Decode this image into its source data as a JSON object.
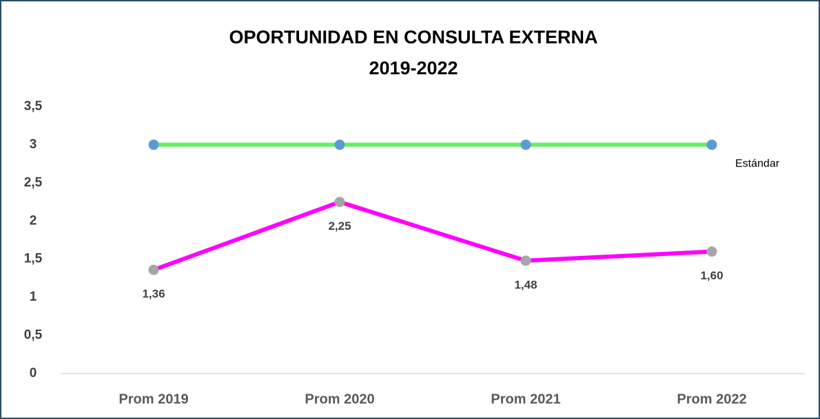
{
  "chart_data": {
    "type": "line",
    "title": "OPORTUNIDAD EN  CONSULTA EXTERNA",
    "subtitle": "2019-2022",
    "categories": [
      "Prom 2019",
      "Prom 2020",
      "Prom 2021",
      "Prom 2022"
    ],
    "series": [
      {
        "name": "Estándar",
        "color": "#66ee66",
        "marker_color": "#5b9bd5",
        "values": [
          3,
          3,
          3,
          3
        ]
      },
      {
        "color": "#ff00ff",
        "marker_color": "#a6a6a6",
        "values": [
          1.36,
          2.25,
          1.48,
          1.6
        ],
        "value_labels": [
          "1,36",
          "2,25",
          "1,48",
          "1,60"
        ]
      }
    ],
    "ylim": [
      0,
      3.5
    ],
    "yticks": [
      0,
      {
        "value": 0.5,
        "label": "0,5"
      },
      1,
      {
        "value": 1.5,
        "label": "1,5"
      },
      2,
      {
        "value": 2.5,
        "label": "2,5"
      },
      3,
      {
        "value": 3.5,
        "label": "3,5"
      }
    ],
    "grid": false
  }
}
